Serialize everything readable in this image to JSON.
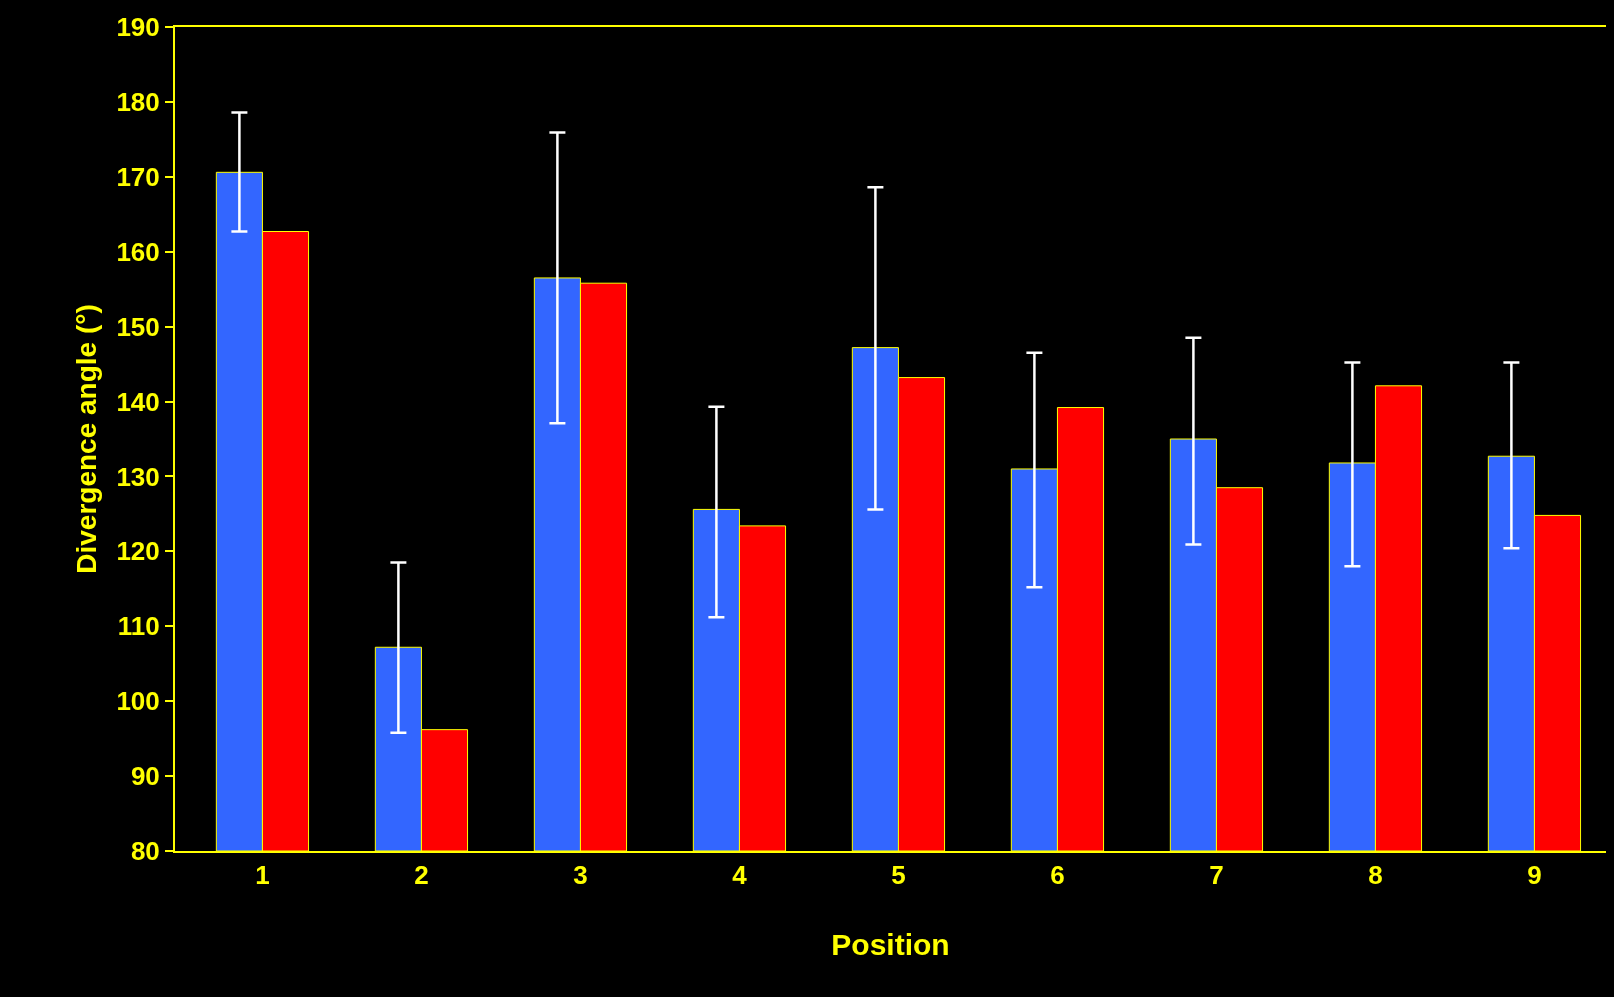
{
  "chart_data": {
    "type": "bar",
    "xlabel": "Position",
    "ylabel": "Divergence angle (°)",
    "categories": [
      "1",
      "2",
      "3",
      "4",
      "5",
      "6",
      "7",
      "8",
      "9"
    ],
    "series": [
      {
        "color": "#3366ff",
        "values": [
          170.6,
          107.2,
          156.5,
          125.6,
          147.2,
          131.0,
          135.0,
          131.8,
          132.7
        ],
        "errors": [
          [
            162.7,
            178.6
          ],
          [
            95.8,
            118.5
          ],
          [
            137.1,
            175.9
          ],
          [
            111.2,
            139.3
          ],
          [
            125.6,
            168.6
          ],
          [
            115.2,
            146.5
          ],
          [
            120.9,
            148.5
          ],
          [
            118.0,
            145.2
          ],
          [
            120.4,
            145.2
          ]
        ]
      },
      {
        "color": "#ff0000",
        "values": [
          162.7,
          96.2,
          155.8,
          123.4,
          143.2,
          139.2,
          128.5,
          142.1,
          124.8
        ]
      }
    ],
    "ylim": [
      80,
      190
    ],
    "yticks": [
      80,
      90,
      100,
      110,
      120,
      130,
      140,
      150,
      160,
      170,
      180,
      190
    ],
    "grid": false
  }
}
